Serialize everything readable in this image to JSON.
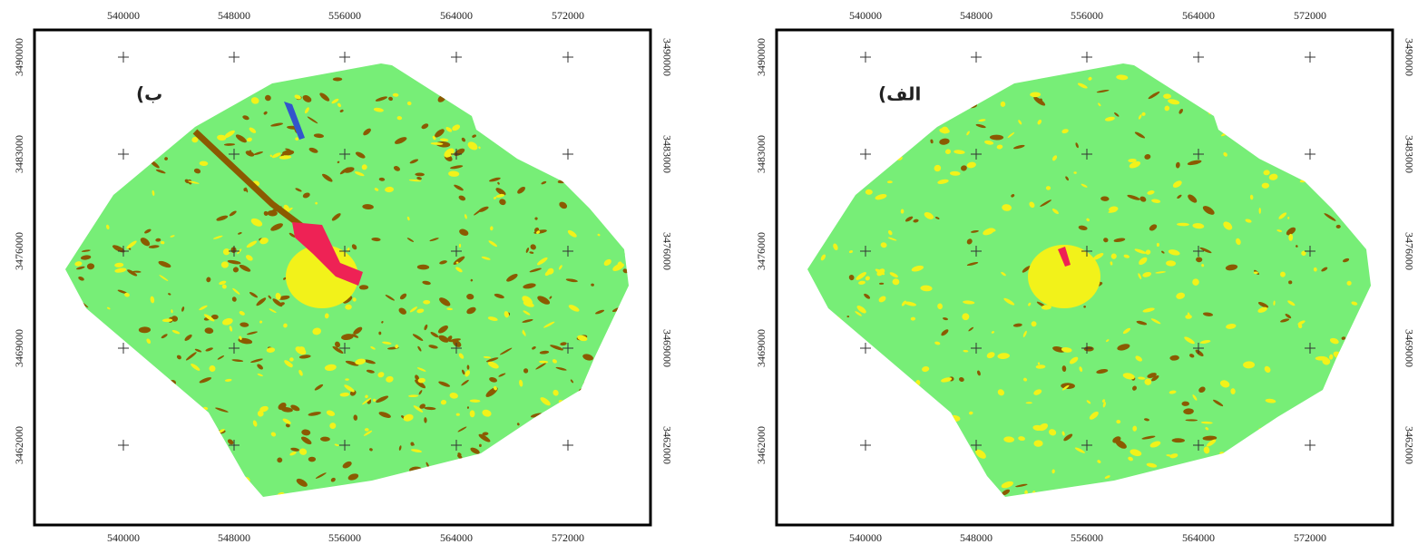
{
  "panels": [
    {
      "label": "ب)",
      "x_ticks": [
        540000,
        548000,
        556000,
        564000,
        572000
      ],
      "y_ticks": [
        3490000,
        3483000,
        3476000,
        3469000,
        3462000
      ]
    },
    {
      "label": "الف)",
      "x_ticks": [
        540000,
        548000,
        556000,
        564000,
        572000
      ],
      "y_ticks": [
        3490000,
        3483000,
        3476000,
        3469000,
        3462000
      ]
    }
  ]
}
